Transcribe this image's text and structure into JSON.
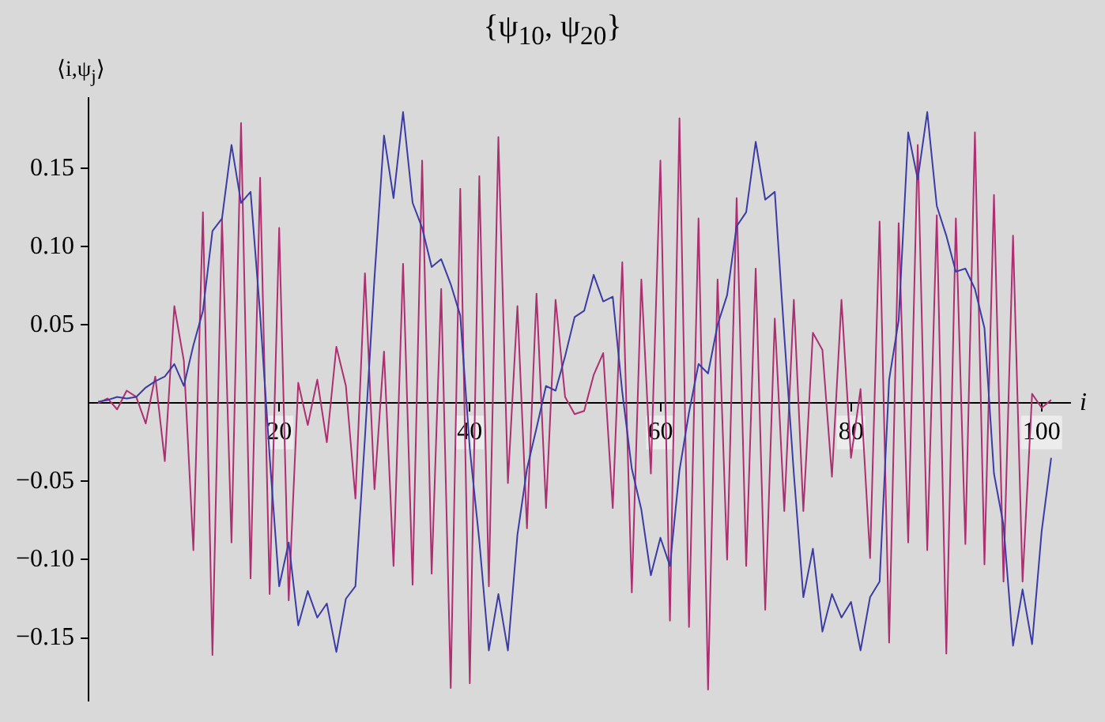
{
  "chart_data": {
    "type": "line",
    "title": "{ψ$_{10}$, ψ$_{20}$}",
    "ylabel": "⟨i,ψ$_{j}$⟩",
    "xlabel": "i",
    "x": [
      1,
      2,
      3,
      4,
      5,
      6,
      7,
      8,
      9,
      10,
      11,
      12,
      13,
      14,
      15,
      16,
      17,
      18,
      19,
      20,
      21,
      22,
      23,
      24,
      25,
      26,
      27,
      28,
      29,
      30,
      31,
      32,
      33,
      34,
      35,
      36,
      37,
      38,
      39,
      40,
      41,
      42,
      43,
      44,
      45,
      46,
      47,
      48,
      49,
      50,
      51,
      52,
      53,
      54,
      55,
      56,
      57,
      58,
      59,
      60,
      61,
      62,
      63,
      64,
      65,
      66,
      67,
      68,
      69,
      70,
      71,
      72,
      73,
      74,
      75,
      76,
      77,
      78,
      79,
      80,
      81,
      82,
      83,
      84,
      85,
      86,
      87,
      88,
      89,
      90,
      91,
      92,
      93,
      94,
      95,
      96,
      97,
      98,
      99,
      100,
      101
    ],
    "series": [
      {
        "color": "#3b3ba6",
        "values": [
          0.001,
          0.002,
          0.004,
          0.003,
          0.004,
          0.01,
          0.014,
          0.017,
          0.025,
          0.011,
          0.037,
          0.059,
          0.11,
          0.118,
          0.165,
          0.128,
          0.135,
          0.057,
          -0.034,
          -0.117,
          -0.089,
          -0.142,
          -0.12,
          -0.137,
          -0.128,
          -0.159,
          -0.125,
          -0.117,
          -0.022,
          0.08,
          0.171,
          0.131,
          0.186,
          0.128,
          0.112,
          0.087,
          0.092,
          0.076,
          0.056,
          -0.029,
          -0.088,
          -0.158,
          -0.122,
          -0.158,
          -0.084,
          -0.042,
          -0.016,
          0.011,
          0.008,
          0.03,
          0.055,
          0.059,
          0.082,
          0.065,
          0.068,
          0.007,
          -0.042,
          -0.068,
          -0.11,
          -0.086,
          -0.104,
          -0.043,
          -0.006,
          0.025,
          0.019,
          0.05,
          0.069,
          0.113,
          0.122,
          0.167,
          0.13,
          0.135,
          0.043,
          -0.045,
          -0.124,
          -0.093,
          -0.146,
          -0.122,
          -0.137,
          -0.127,
          -0.158,
          -0.124,
          -0.114,
          0.015,
          0.053,
          0.173,
          0.143,
          0.186,
          0.126,
          0.107,
          0.084,
          0.086,
          0.073,
          0.048,
          -0.045,
          -0.078,
          -0.155,
          -0.119,
          -0.154,
          -0.082,
          -0.035
        ]
      },
      {
        "color": "#ad2f72",
        "values": [
          0.0,
          0.003,
          -0.004,
          0.008,
          0.004,
          -0.013,
          0.017,
          -0.037,
          0.062,
          0.027,
          -0.094,
          0.122,
          -0.161,
          0.118,
          -0.089,
          0.179,
          -0.112,
          0.144,
          -0.122,
          0.112,
          -0.126,
          0.013,
          -0.014,
          0.015,
          -0.025,
          0.036,
          0.011,
          -0.061,
          0.083,
          -0.055,
          0.033,
          -0.104,
          0.089,
          -0.116,
          0.155,
          -0.109,
          0.073,
          -0.182,
          0.137,
          -0.179,
          0.145,
          -0.117,
          0.17,
          -0.051,
          0.062,
          -0.08,
          0.07,
          -0.067,
          0.066,
          0.004,
          -0.007,
          -0.005,
          0.018,
          0.032,
          -0.067,
          0.09,
          -0.121,
          0.079,
          -0.045,
          0.155,
          -0.139,
          0.182,
          -0.143,
          0.118,
          -0.183,
          0.079,
          -0.1,
          0.131,
          -0.104,
          0.086,
          -0.132,
          0.054,
          -0.069,
          0.066,
          -0.069,
          0.045,
          0.034,
          -0.047,
          0.066,
          -0.035,
          0.009,
          -0.099,
          0.116,
          -0.153,
          0.115,
          -0.089,
          0.165,
          -0.094,
          0.12,
          -0.16,
          0.118,
          -0.09,
          0.173,
          -0.103,
          0.133,
          -0.114,
          0.107,
          -0.114,
          0.006,
          -0.003,
          0.002
        ]
      }
    ],
    "xlim": [
      0,
      103
    ],
    "xticks": [
      20,
      40,
      60,
      80,
      100
    ],
    "ylim": [
      -0.19,
      0.195
    ],
    "yticks": [
      {
        "value": -0.15,
        "label": "−0.15"
      },
      {
        "value": -0.1,
        "label": "−0.10"
      },
      {
        "value": -0.05,
        "label": "−0.05"
      },
      {
        "value": 0.05,
        "label": "0.05"
      },
      {
        "value": 0.1,
        "label": "0.10"
      },
      {
        "value": 0.15,
        "label": "0.15"
      }
    ],
    "grid": false,
    "legend": false,
    "marker": "none",
    "line_style": "solid"
  }
}
